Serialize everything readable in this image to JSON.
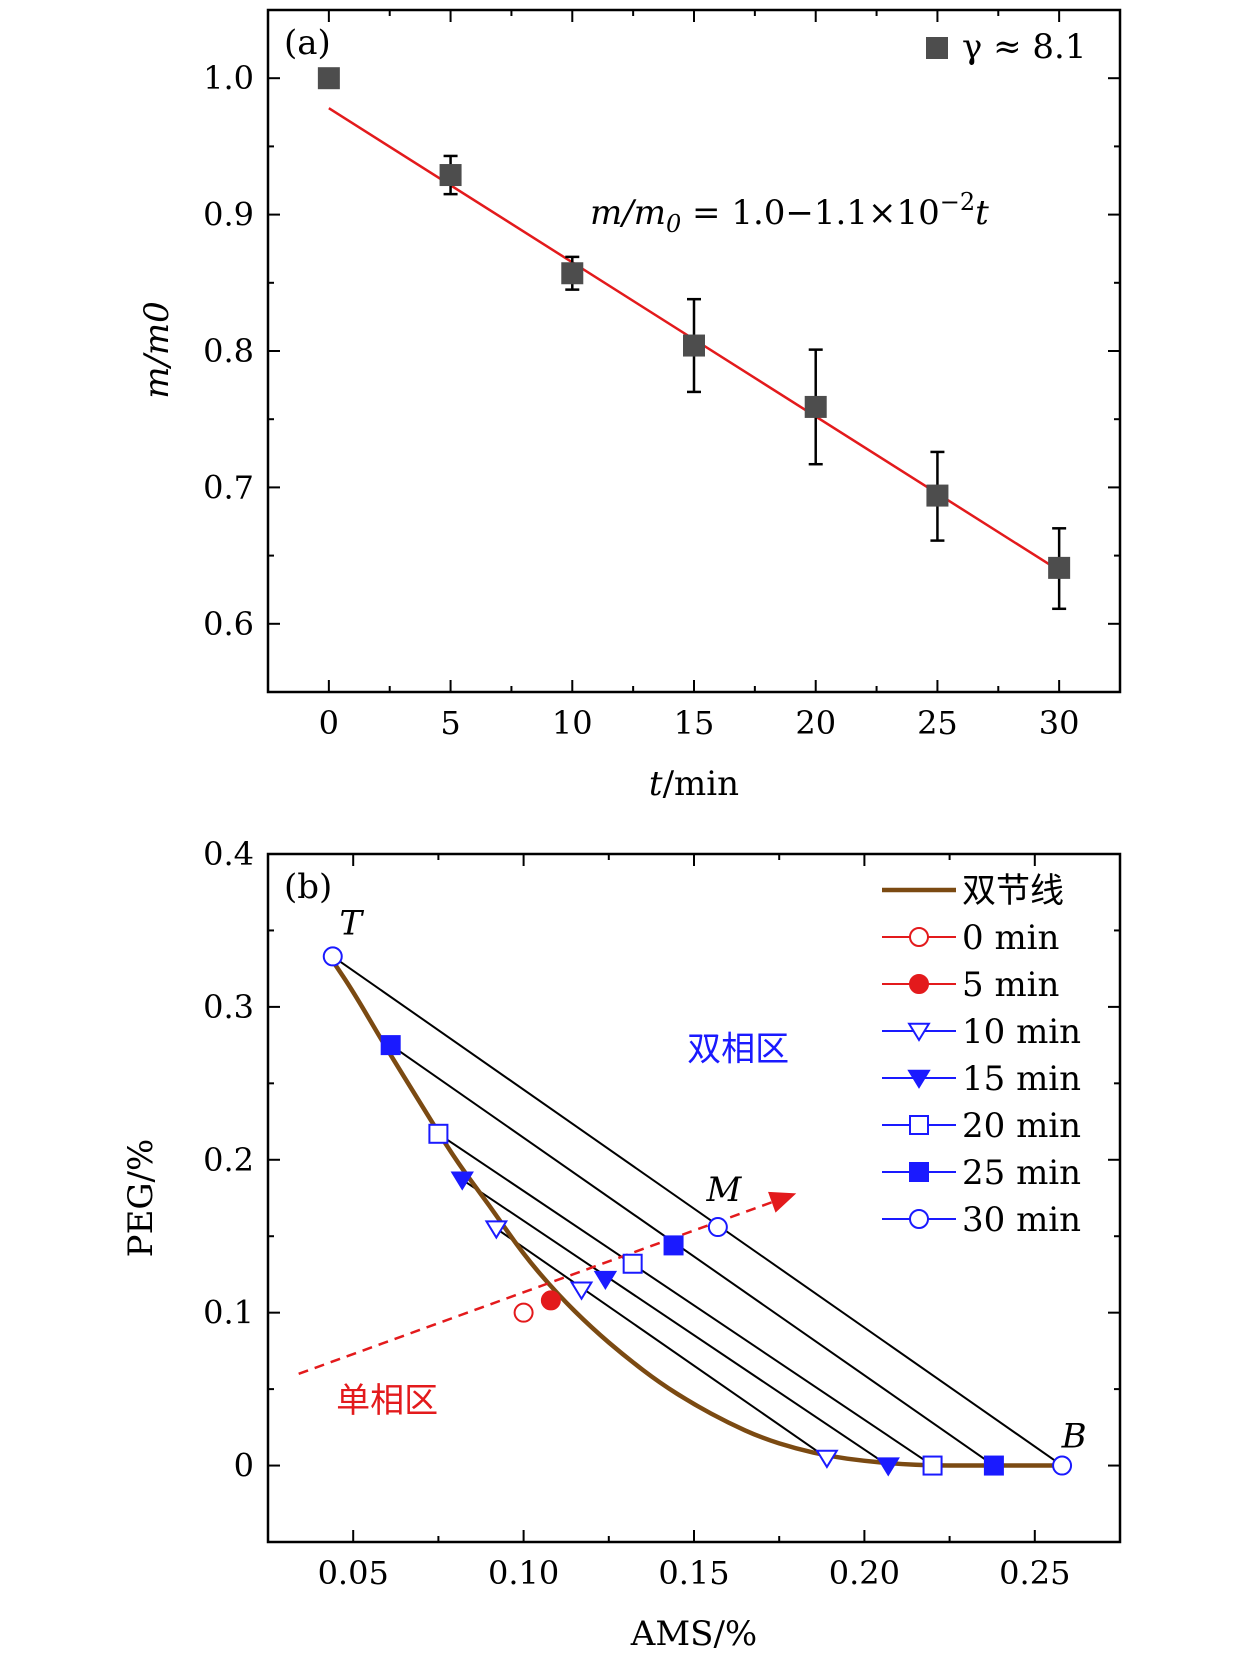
{
  "chart_data": [
    {
      "panel": "(a)",
      "type": "scatter",
      "xlabel_var": "t",
      "xlabel_unit": "/min",
      "ylabel": "m/m0",
      "xlim": [
        -2.5,
        32.5
      ],
      "ylim": [
        0.55,
        1.05
      ],
      "xticks": [
        0,
        5,
        10,
        15,
        20,
        25,
        30
      ],
      "xtick_labels": [
        "0",
        "5",
        "10",
        "15",
        "20",
        "25",
        "30"
      ],
      "yticks": [
        0.6,
        0.7,
        0.8,
        0.9,
        1.0
      ],
      "ytick_labels": [
        "0.6",
        "0.7",
        "0.8",
        "0.9",
        "1.0"
      ],
      "series": [
        {
          "name": "γ ≈ 8.1",
          "legend_symbol": "■",
          "legend_text": "γ ≈ 8.1",
          "color": "#4d4d4d",
          "x": [
            0,
            5,
            10,
            15,
            20,
            25,
            30
          ],
          "y": [
            1.0,
            0.929,
            0.857,
            0.804,
            0.759,
            0.694,
            0.641
          ],
          "err_low": [
            0,
            0.014,
            0.012,
            0.034,
            0.042,
            0.033,
            0.03
          ],
          "err_high": [
            0,
            0.014,
            0.012,
            0.034,
            0.042,
            0.032,
            0.029
          ]
        }
      ],
      "fit": {
        "x": [
          0,
          30
        ],
        "y": [
          0.978,
          0.639
        ],
        "color": "#e31a1c"
      },
      "annotation": {
        "lhs": "m/m",
        "sub": "0",
        "eq": " = 1.0−1.1×10",
        "sup": "−2",
        "var": "t"
      }
    },
    {
      "panel": "(b)",
      "type": "line",
      "xlabel": "AMS/%",
      "ylabel": "PEG/%",
      "xlim": [
        0.025,
        0.275
      ],
      "ylim": [
        -0.05,
        0.4
      ],
      "xticks": [
        0.05,
        0.1,
        0.15,
        0.2,
        0.25
      ],
      "xtick_labels": [
        "0.05",
        "0.10",
        "0.15",
        "0.20",
        "0.25"
      ],
      "yticks": [
        0,
        0.1,
        0.2,
        0.3,
        0.4
      ],
      "ytick_labels": [
        "0",
        "0.1",
        "0.2",
        "0.3",
        "0.4"
      ],
      "binodal": {
        "name": "双节线",
        "color": "#7b4a12",
        "x": [
          0.044,
          0.05,
          0.06,
          0.07,
          0.08,
          0.09,
          0.1,
          0.11,
          0.12,
          0.13,
          0.14,
          0.15,
          0.16,
          0.17,
          0.18,
          0.19,
          0.2,
          0.21,
          0.22,
          0.23,
          0.24,
          0.25,
          0.258
        ],
        "y": [
          0.33,
          0.31,
          0.272,
          0.236,
          0.2,
          0.17,
          0.138,
          0.112,
          0.09,
          0.071,
          0.054,
          0.04,
          0.028,
          0.018,
          0.011,
          0.006,
          0.003,
          0.001,
          0.0,
          0.0,
          0.0,
          0.0,
          0.0
        ]
      },
      "tie_lines": [
        {
          "x": [
            0.044,
            0.258
          ],
          "y": [
            0.333,
            0.0
          ]
        },
        {
          "x": [
            0.061,
            0.238
          ],
          "y": [
            0.275,
            0.0
          ]
        },
        {
          "x": [
            0.075,
            0.22
          ],
          "y": [
            0.217,
            0.0
          ]
        },
        {
          "x": [
            0.082,
            0.207
          ],
          "y": [
            0.187,
            0.0
          ]
        },
        {
          "x": [
            0.092,
            0.189
          ],
          "y": [
            0.155,
            0.005
          ]
        }
      ],
      "series": [
        {
          "name": "0 min",
          "label": "0 min",
          "color": "#e31a1c",
          "marker": "circle",
          "filled": false,
          "x": [
            0.1
          ],
          "y": [
            0.1
          ]
        },
        {
          "name": "5 min",
          "label": "5 min",
          "color": "#e31a1c",
          "marker": "circle",
          "filled": true,
          "x": [
            0.108
          ],
          "y": [
            0.108
          ]
        },
        {
          "name": "10 min",
          "label": "10 min",
          "color": "#1a1aff",
          "marker": "triangle-down",
          "filled": false,
          "x": [
            0.092,
            0.117,
            0.189
          ],
          "y": [
            0.155,
            0.115,
            0.005
          ]
        },
        {
          "name": "15 min",
          "label": "15 min",
          "color": "#1a1aff",
          "marker": "triangle-down",
          "filled": true,
          "x": [
            0.082,
            0.124,
            0.207
          ],
          "y": [
            0.187,
            0.122,
            0.0
          ]
        },
        {
          "name": "20 min",
          "label": "20 min",
          "color": "#1a1aff",
          "marker": "square",
          "filled": false,
          "x": [
            0.075,
            0.132,
            0.22
          ],
          "y": [
            0.217,
            0.132,
            0.0
          ]
        },
        {
          "name": "25 min",
          "label": "25 min",
          "color": "#1a1aff",
          "marker": "square",
          "filled": true,
          "x": [
            0.061,
            0.144,
            0.238
          ],
          "y": [
            0.275,
            0.144,
            0.0
          ]
        },
        {
          "name": "30 min",
          "label": "30 min",
          "color": "#1a1aff",
          "marker": "circle",
          "filled": false,
          "x": [
            0.044,
            0.157,
            0.258
          ],
          "y": [
            0.333,
            0.156,
            0.0
          ]
        }
      ],
      "arrow": {
        "x": [
          0.034,
          0.18
        ],
        "y": [
          0.06,
          0.178
        ],
        "color": "#e31a1c"
      },
      "point_labels": [
        {
          "text": "T",
          "x": 0.044,
          "y": 0.333
        },
        {
          "text": "M",
          "x": 0.157,
          "y": 0.156
        },
        {
          "text": "B",
          "x": 0.258,
          "y": 0.0
        }
      ],
      "region_labels": [
        {
          "text": "双相区",
          "x": 0.148,
          "y": 0.265,
          "color": "#1a1aff"
        },
        {
          "text": "单相区",
          "x": 0.045,
          "y": 0.035,
          "color": "#e31a1c"
        }
      ]
    }
  ]
}
